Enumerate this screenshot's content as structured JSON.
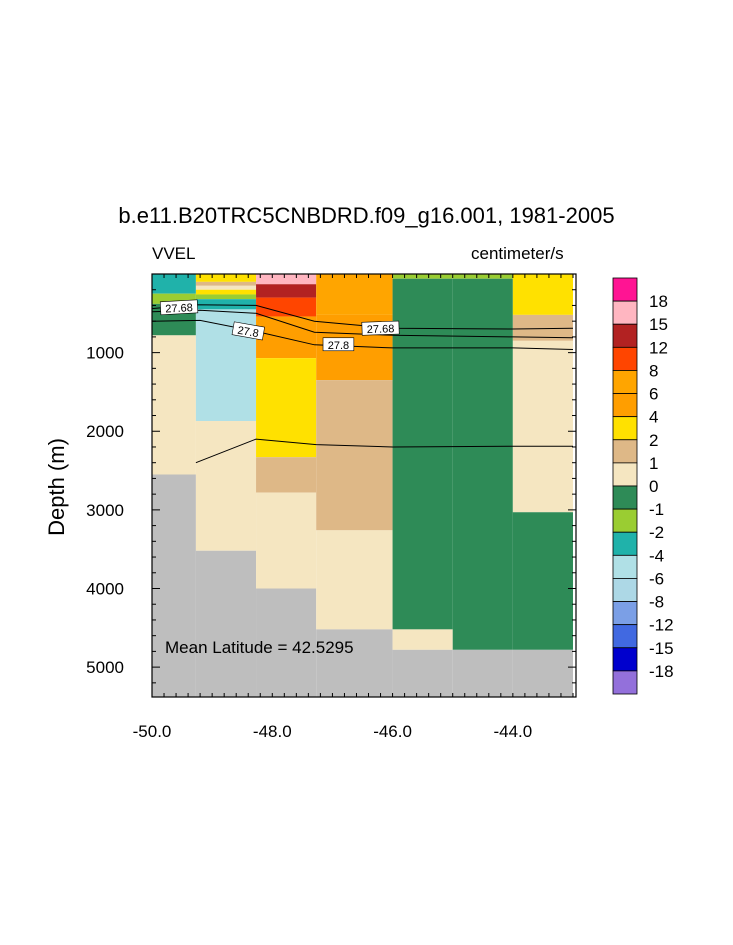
{
  "title": "b.e11.B20TRC5CNBDRD.f09_g16.001, 1981-2005",
  "variable_label": "VVEL",
  "units_label": "centimeter/s",
  "annotation": "Mean Latitude = 42.5295",
  "colors": {
    "land": "#bebebe",
    "frame": "#000000",
    "contour": "#000000"
  },
  "chart_data": {
    "type": "heatmap",
    "title": "b.e11.B20TRC5CNBDRD.f09_g16.001, 1981-2005",
    "xlabel": "",
    "ylabel": "Depth (m)",
    "xlim": [
      -50.0,
      -42.95
    ],
    "ylim": [
      5380,
      0
    ],
    "xticks": [
      -50.0,
      -48.0,
      -46.0,
      -44.0
    ],
    "xtick_labels": [
      "-50.0",
      "-48.0",
      "-46.0",
      "-44.0"
    ],
    "yticks": [
      1000,
      2000,
      3000,
      4000,
      5000
    ],
    "ytick_labels": [
      "1000",
      "2000",
      "3000",
      "4000",
      "5000"
    ],
    "colorbar": {
      "labels": [
        "18",
        "15",
        "12",
        "8",
        "6",
        "4",
        "2",
        "1",
        "0",
        "-1",
        "-2",
        "-4",
        "-6",
        "-8",
        "-12",
        "-15",
        "-18"
      ],
      "colors": [
        "#ff1493",
        "#ffb6c1",
        "#b22222",
        "#ff4500",
        "#ffa500",
        "#ff9e00",
        "#ffe100",
        "#deb887",
        "#f5e6c1",
        "#2e8b57",
        "#9acd32",
        "#20b2aa",
        "#b0e0e6",
        "#add8e6",
        "#7b9fe6",
        "#4169e1",
        "#0000cd",
        "#9370db"
      ]
    },
    "cells": [
      {
        "x": [
          -50.0,
          -49.27
        ],
        "z": [
          0,
          250
        ],
        "color": "#20b2aa"
      },
      {
        "x": [
          -50.0,
          -49.27
        ],
        "z": [
          250,
          380
        ],
        "color": "#9acd32"
      },
      {
        "x": [
          -50.0,
          -49.27
        ],
        "z": [
          380,
          780
        ],
        "color": "#2e8b57"
      },
      {
        "x": [
          -50.0,
          -49.27
        ],
        "z": [
          780,
          2550
        ],
        "color": "#f5e6c1"
      },
      {
        "x": [
          -50.0,
          -49.27
        ],
        "z": [
          2550,
          5380
        ],
        "color": "#bebebe"
      },
      {
        "x": [
          -49.27,
          -48.27
        ],
        "z": [
          0,
          100
        ],
        "color": "#ffe100"
      },
      {
        "x": [
          -49.27,
          -48.27
        ],
        "z": [
          100,
          150
        ],
        "color": "#deb887"
      },
      {
        "x": [
          -49.27,
          -48.27
        ],
        "z": [
          150,
          200
        ],
        "color": "#f5e6c1"
      },
      {
        "x": [
          -49.27,
          -48.27
        ],
        "z": [
          200,
          260
        ],
        "color": "#ffe100"
      },
      {
        "x": [
          -49.27,
          -48.27
        ],
        "z": [
          260,
          320
        ],
        "color": "#9acd32"
      },
      {
        "x": [
          -49.27,
          -48.27
        ],
        "z": [
          320,
          450
        ],
        "color": "#20b2aa"
      },
      {
        "x": [
          -49.27,
          -48.27
        ],
        "z": [
          450,
          1870
        ],
        "color": "#b0e0e6"
      },
      {
        "x": [
          -49.27,
          -48.27
        ],
        "z": [
          1870,
          3520
        ],
        "color": "#f5e6c1"
      },
      {
        "x": [
          -49.27,
          -48.27
        ],
        "z": [
          3520,
          5380
        ],
        "color": "#bebebe"
      },
      {
        "x": [
          -48.27,
          -47.27
        ],
        "z": [
          0,
          130
        ],
        "color": "#ffb6c1"
      },
      {
        "x": [
          -48.27,
          -47.27
        ],
        "z": [
          130,
          300
        ],
        "color": "#b22222"
      },
      {
        "x": [
          -48.27,
          -47.27
        ],
        "z": [
          300,
          540
        ],
        "color": "#ff4500"
      },
      {
        "x": [
          -48.27,
          -47.27
        ],
        "z": [
          540,
          1070
        ],
        "color": "#ff9e00"
      },
      {
        "x": [
          -48.27,
          -47.27
        ],
        "z": [
          1070,
          2330
        ],
        "color": "#ffe100"
      },
      {
        "x": [
          -48.27,
          -47.27
        ],
        "z": [
          2330,
          2780
        ],
        "color": "#deb887"
      },
      {
        "x": [
          -48.27,
          -47.27
        ],
        "z": [
          2780,
          4000
        ],
        "color": "#f5e6c1"
      },
      {
        "x": [
          -48.27,
          -47.27
        ],
        "z": [
          4000,
          5380
        ],
        "color": "#bebebe"
      },
      {
        "x": [
          -47.27,
          -46.0
        ],
        "z": [
          0,
          520
        ],
        "color": "#ffa500"
      },
      {
        "x": [
          -47.27,
          -46.0
        ],
        "z": [
          520,
          1350
        ],
        "color": "#ff9e00"
      },
      {
        "x": [
          -47.27,
          -46.0
        ],
        "z": [
          1350,
          3260
        ],
        "color": "#deb887"
      },
      {
        "x": [
          -47.27,
          -46.0
        ],
        "z": [
          3260,
          4520
        ],
        "color": "#f5e6c1"
      },
      {
        "x": [
          -47.27,
          -46.0
        ],
        "z": [
          4520,
          5380
        ],
        "color": "#bebebe"
      },
      {
        "x": [
          -46.0,
          -45.0
        ],
        "z": [
          0,
          60
        ],
        "color": "#9acd32"
      },
      {
        "x": [
          -46.0,
          -45.0
        ],
        "z": [
          60,
          4520
        ],
        "color": "#2e8b57"
      },
      {
        "x": [
          -46.0,
          -45.0
        ],
        "z": [
          4520,
          4780
        ],
        "color": "#f5e6c1"
      },
      {
        "x": [
          -46.0,
          -45.0
        ],
        "z": [
          4780,
          5380
        ],
        "color": "#bebebe"
      },
      {
        "x": [
          -45.0,
          -44.0
        ],
        "z": [
          0,
          60
        ],
        "color": "#9acd32"
      },
      {
        "x": [
          -45.0,
          -44.0
        ],
        "z": [
          60,
          4780
        ],
        "color": "#2e8b57"
      },
      {
        "x": [
          -45.0,
          -44.0
        ],
        "z": [
          4780,
          5380
        ],
        "color": "#bebebe"
      },
      {
        "x": [
          -44.0,
          -43.0
        ],
        "z": [
          0,
          520
        ],
        "color": "#ffe100"
      },
      {
        "x": [
          -44.0,
          -43.0
        ],
        "z": [
          520,
          850
        ],
        "color": "#deb887"
      },
      {
        "x": [
          -44.0,
          -43.0
        ],
        "z": [
          850,
          3030
        ],
        "color": "#f5e6c1"
      },
      {
        "x": [
          -44.0,
          -43.0
        ],
        "z": [
          3030,
          4780
        ],
        "color": "#2e8b57"
      },
      {
        "x": [
          -44.0,
          -43.0
        ],
        "z": [
          4780,
          5380
        ],
        "color": "#bebebe"
      }
    ],
    "contours": [
      {
        "label": "27.68",
        "points": [
          [
            -50.0,
            440
          ],
          [
            -49.3,
            390
          ],
          [
            -48.27,
            400
          ],
          [
            -47.3,
            600
          ],
          [
            -46.0,
            690
          ],
          [
            -44.0,
            700
          ],
          [
            -43.0,
            690
          ]
        ]
      },
      {
        "label": "27.68",
        "points": [
          [
            -50.0,
            480
          ],
          [
            -49.2,
            460
          ],
          [
            -48.27,
            500
          ],
          [
            -47.3,
            740
          ],
          [
            -46.0,
            780
          ],
          [
            -44.0,
            800
          ],
          [
            -43.0,
            810
          ]
        ]
      },
      {
        "label": "27.8",
        "points": [
          [
            -50.0,
            600
          ],
          [
            -49.2,
            590
          ],
          [
            -48.27,
            730
          ],
          [
            -47.3,
            900
          ],
          [
            -46.0,
            940
          ],
          [
            -44.0,
            940
          ],
          [
            -43.0,
            960
          ]
        ]
      },
      {
        "label": "",
        "points": [
          [
            -49.27,
            2400
          ],
          [
            -48.27,
            2100
          ],
          [
            -47.27,
            2170
          ],
          [
            -46.0,
            2200
          ],
          [
            -44.0,
            2190
          ],
          [
            -43.0,
            2190
          ]
        ]
      }
    ],
    "contour_labels": [
      {
        "text": "27.68",
        "x": -49.55,
        "z": 430,
        "angle": -3
      },
      {
        "text": "27.68",
        "x": -46.2,
        "z": 695,
        "angle": -2
      },
      {
        "text": "27.8",
        "x": -48.4,
        "z": 730,
        "angle": 10
      },
      {
        "text": "27.8",
        "x": -46.9,
        "z": 900,
        "angle": 0
      }
    ]
  }
}
